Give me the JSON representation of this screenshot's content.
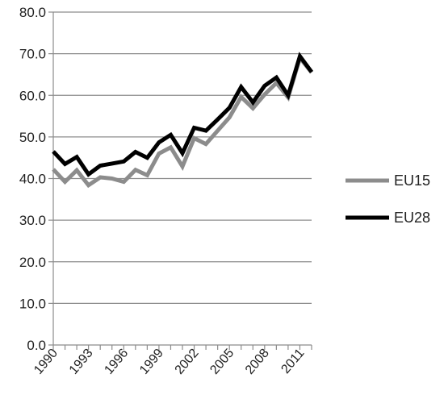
{
  "chart_data": {
    "type": "line",
    "title": "",
    "xlabel": "",
    "ylabel": "",
    "ylim": [
      0,
      80
    ],
    "yticks": [
      "0.0",
      "10.0",
      "20.0",
      "30.0",
      "40.0",
      "50.0",
      "60.0",
      "70.0",
      "80.0"
    ],
    "xlim": [
      1990,
      2012
    ],
    "xticks": [
      "1990",
      "1993",
      "1996",
      "1999",
      "2002",
      "2005",
      "2008",
      "2011"
    ],
    "grid": "horizontal",
    "legend": "right",
    "x": [
      1990,
      1991,
      1992,
      1993,
      1994,
      1995,
      1996,
      1997,
      1998,
      1999,
      2000,
      2001,
      2002,
      2003,
      2004,
      2005,
      2006,
      2007,
      2008,
      2009,
      2010,
      2011,
      2012
    ],
    "series": [
      {
        "name": "EU15",
        "color": "#8c8c8c",
        "values": [
          42.2,
          39.2,
          42.0,
          38.4,
          40.3,
          40.0,
          39.2,
          42.1,
          40.8,
          46.0,
          47.5,
          42.9,
          49.7,
          48.3,
          51.5,
          54.7,
          59.6,
          56.9,
          60.2,
          63.0,
          59.5,
          69.0,
          65.5
        ]
      },
      {
        "name": "EU28",
        "color": "#000000",
        "values": [
          46.5,
          43.5,
          45.2,
          41.0,
          43.1,
          43.6,
          44.1,
          46.4,
          45.0,
          48.7,
          50.5,
          46.1,
          52.2,
          51.5,
          54.2,
          57.0,
          62.0,
          58.3,
          62.3,
          64.3,
          60.0,
          69.4,
          65.6
        ]
      }
    ]
  }
}
